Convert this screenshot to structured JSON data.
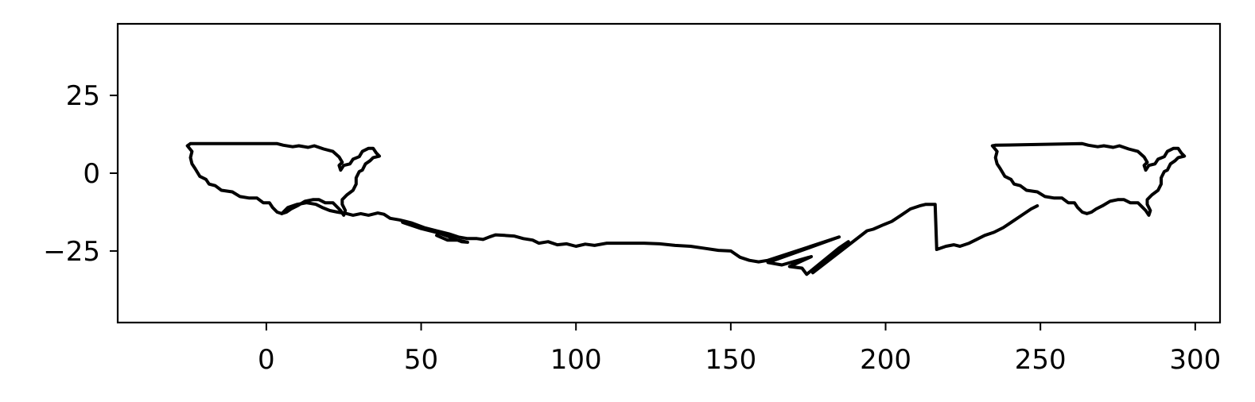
{
  "chart_data": {
    "type": "line",
    "title": "",
    "xlabel": "",
    "ylabel": "",
    "xlim": [
      -48,
      308
    ],
    "ylim": [
      -48,
      48
    ],
    "grid": false,
    "legend": "none",
    "x_ticks": [
      {
        "value": 0,
        "label": "0"
      },
      {
        "value": 50,
        "label": "50"
      },
      {
        "value": 100,
        "label": "100"
      },
      {
        "value": 150,
        "label": "150"
      },
      {
        "value": 200,
        "label": "200"
      },
      {
        "value": 250,
        "label": "250"
      },
      {
        "value": 300,
        "label": "300"
      }
    ],
    "y_ticks": [
      {
        "value": 25,
        "label": "25"
      },
      {
        "value": 0,
        "label": "0"
      },
      {
        "value": -25,
        "label": "−25"
      }
    ],
    "colors": {
      "line": "#000000",
      "frame": "#000000",
      "background": "#ffffff"
    },
    "series": [
      {
        "points": [
          [
            -24.5,
            9.5
          ],
          [
            3.5,
            9.5
          ],
          [
            5.5,
            9.0
          ],
          [
            8.5,
            8.5
          ],
          [
            10.5,
            8.8
          ],
          [
            13.5,
            8.3
          ],
          [
            15.5,
            8.8
          ],
          [
            18.5,
            7.8
          ],
          [
            21.5,
            7.0
          ],
          [
            23.5,
            5.2
          ],
          [
            24.5,
            3.5
          ],
          [
            23.5,
            2.5
          ],
          [
            24.0,
            1.0
          ],
          [
            25.0,
            2.5
          ],
          [
            27.0,
            3.0
          ],
          [
            28.0,
            4.5
          ],
          [
            30.0,
            5.3
          ],
          [
            31.0,
            7.0
          ],
          [
            33.0,
            8.0
          ],
          [
            34.5,
            8.0
          ],
          [
            35.5,
            6.5
          ],
          [
            36.5,
            5.5
          ],
          [
            34.5,
            5.0
          ],
          [
            33.5,
            4.0
          ],
          [
            32.0,
            3.0
          ],
          [
            31.0,
            1.0
          ],
          [
            30.0,
            0.5
          ],
          [
            29.0,
            -1.5
          ],
          [
            29.0,
            -3.5
          ],
          [
            28.0,
            -5.5
          ],
          [
            26.0,
            -7.0
          ],
          [
            24.5,
            -8.5
          ],
          [
            24.5,
            -10.0
          ],
          [
            25.5,
            -12.0
          ],
          [
            25.0,
            -13.5
          ],
          [
            24.0,
            -12.0
          ],
          [
            22.5,
            -10.5
          ],
          [
            21.5,
            -9.5
          ],
          [
            19.0,
            -9.5
          ],
          [
            17.0,
            -8.5
          ],
          [
            15.0,
            -8.5
          ],
          [
            12.5,
            -9.0
          ],
          [
            10.0,
            -10.5
          ],
          [
            8.0,
            -11.5
          ],
          [
            6.5,
            -12.5
          ],
          [
            5.0,
            -13.0
          ],
          [
            3.5,
            -12.5
          ],
          [
            2.0,
            -11.0
          ],
          [
            1.0,
            -9.5
          ],
          [
            -1.0,
            -9.5
          ],
          [
            -3.0,
            -8.0
          ],
          [
            -5.5,
            -8.0
          ],
          [
            -8.5,
            -7.5
          ],
          [
            -11.0,
            -6.0
          ],
          [
            -14.5,
            -5.5
          ],
          [
            -16.5,
            -4.0
          ],
          [
            -18.5,
            -3.5
          ],
          [
            -19.5,
            -2.0
          ],
          [
            -21.5,
            -1.0
          ],
          [
            -23.0,
            1.5
          ],
          [
            -24.0,
            3.0
          ],
          [
            -24.5,
            5.0
          ],
          [
            -24.0,
            7.0
          ],
          [
            -25.5,
            8.8
          ],
          [
            -24.5,
            9.5
          ]
        ]
      },
      {
        "points": [
          [
            5.0,
            -13.0
          ],
          [
            7.0,
            -11.0
          ],
          [
            10.0,
            -10.0
          ],
          [
            13.0,
            -9.5
          ],
          [
            16.0,
            -10.0
          ],
          [
            18.0,
            -11.0
          ],
          [
            20.5,
            -12.0
          ],
          [
            23.0,
            -12.5
          ],
          [
            26.0,
            -13.0
          ],
          [
            28.0,
            -13.5
          ],
          [
            30.5,
            -13.0
          ],
          [
            33.0,
            -13.5
          ],
          [
            36.0,
            -12.8
          ],
          [
            38.0,
            -13.2
          ],
          [
            40.0,
            -14.5
          ],
          [
            43.0,
            -15.0
          ],
          [
            47.0,
            -16.0
          ],
          [
            51.0,
            -17.5
          ],
          [
            55.0,
            -18.5
          ],
          [
            59.0,
            -19.5
          ],
          [
            62.0,
            -20.5
          ],
          [
            65.0,
            -21.0
          ],
          [
            68.0,
            -21.0
          ],
          [
            70.0,
            -21.3
          ],
          [
            72.0,
            -20.5
          ],
          [
            74.0,
            -19.8
          ],
          [
            77.0,
            -20.0
          ],
          [
            80.0,
            -20.2
          ],
          [
            83.0,
            -21.0
          ],
          [
            86.0,
            -21.5
          ],
          [
            88.0,
            -22.5
          ],
          [
            91.0,
            -22.0
          ],
          [
            94.0,
            -23.0
          ],
          [
            97.0,
            -22.7
          ],
          [
            100.0,
            -23.5
          ],
          [
            103.0,
            -22.8
          ],
          [
            106.0,
            -23.2
          ],
          [
            110.0,
            -22.5
          ],
          [
            114.0,
            -22.5
          ],
          [
            118.0,
            -22.5
          ],
          [
            122.0,
            -22.5
          ],
          [
            127.0,
            -22.7
          ],
          [
            132.0,
            -23.2
          ],
          [
            137.0,
            -23.5
          ],
          [
            142.0,
            -24.2
          ],
          [
            146.0,
            -24.8
          ],
          [
            150.0,
            -25.0
          ],
          [
            153.0,
            -27.0
          ],
          [
            156.0,
            -28.0
          ],
          [
            159.0,
            -28.5
          ],
          [
            162.0,
            -28.0
          ],
          [
            185.0,
            -20.5
          ],
          [
            162.0,
            -28.7
          ],
          [
            166.5,
            -29.5
          ],
          [
            176.0,
            -26.8
          ],
          [
            169.0,
            -30.0
          ],
          [
            173.0,
            -30.5
          ],
          [
            174.5,
            -32.5
          ],
          [
            185.0,
            -24.0
          ],
          [
            188.0,
            -22.0
          ],
          [
            176.5,
            -32.0
          ],
          [
            194.0,
            -18.5
          ],
          [
            196.0,
            -18.0
          ],
          [
            199.5,
            -16.5
          ],
          [
            202.0,
            -15.5
          ],
          [
            205.0,
            -13.5
          ],
          [
            208.0,
            -11.5
          ],
          [
            211.0,
            -10.5
          ],
          [
            213.0,
            -10.0
          ],
          [
            214.5,
            -10.0
          ],
          [
            216.0,
            -10.0
          ],
          [
            216.5,
            -24.5
          ],
          [
            219.5,
            -23.5
          ],
          [
            222.0,
            -23.0
          ],
          [
            224.0,
            -23.5
          ],
          [
            227.0,
            -22.5
          ],
          [
            229.0,
            -21.5
          ],
          [
            232.0,
            -20.0
          ],
          [
            235.0,
            -19.0
          ],
          [
            238.0,
            -17.5
          ],
          [
            241.0,
            -15.5
          ],
          [
            244.0,
            -13.5
          ],
          [
            247.0,
            -11.5
          ],
          [
            249.0,
            -10.5
          ]
        ]
      },
      {
        "points": [
          [
            44.0,
            -15.8
          ],
          [
            50.0,
            -17.8
          ],
          [
            56.0,
            -19.3
          ],
          [
            60.0,
            -20.8
          ],
          [
            63.0,
            -22.0
          ],
          [
            65.0,
            -22.2
          ],
          [
            62.0,
            -21.5
          ],
          [
            58.5,
            -21.5
          ],
          [
            55.0,
            -20.0
          ]
        ]
      },
      {
        "points": [
          [
            235.5,
            9.0
          ],
          [
            263.5,
            9.5
          ],
          [
            265.5,
            9.0
          ],
          [
            268.5,
            8.5
          ],
          [
            270.5,
            8.8
          ],
          [
            273.5,
            8.3
          ],
          [
            275.5,
            8.8
          ],
          [
            278.5,
            7.8
          ],
          [
            281.5,
            7.0
          ],
          [
            283.5,
            5.2
          ],
          [
            284.5,
            3.5
          ],
          [
            283.5,
            2.5
          ],
          [
            284.0,
            1.0
          ],
          [
            285.0,
            2.5
          ],
          [
            287.0,
            3.0
          ],
          [
            288.0,
            4.5
          ],
          [
            290.0,
            5.3
          ],
          [
            291.0,
            7.0
          ],
          [
            293.0,
            8.0
          ],
          [
            294.5,
            8.0
          ],
          [
            295.5,
            6.5
          ],
          [
            296.5,
            5.5
          ],
          [
            294.5,
            5.0
          ],
          [
            293.5,
            4.0
          ],
          [
            292.0,
            3.0
          ],
          [
            291.0,
            1.0
          ],
          [
            290.0,
            0.5
          ],
          [
            289.0,
            -1.5
          ],
          [
            289.0,
            -3.5
          ],
          [
            288.0,
            -5.5
          ],
          [
            286.0,
            -7.0
          ],
          [
            284.5,
            -8.5
          ],
          [
            284.5,
            -10.0
          ],
          [
            285.5,
            -12.0
          ],
          [
            285.0,
            -13.5
          ],
          [
            284.0,
            -12.0
          ],
          [
            282.5,
            -10.5
          ],
          [
            281.5,
            -9.5
          ],
          [
            279.0,
            -9.5
          ],
          [
            277.0,
            -8.5
          ],
          [
            275.0,
            -8.5
          ],
          [
            272.5,
            -9.0
          ],
          [
            270.0,
            -10.5
          ],
          [
            268.0,
            -11.5
          ],
          [
            266.5,
            -12.5
          ],
          [
            265.0,
            -13.0
          ],
          [
            263.5,
            -12.5
          ],
          [
            262.0,
            -11.0
          ],
          [
            261.0,
            -9.5
          ],
          [
            259.0,
            -9.5
          ],
          [
            257.0,
            -8.0
          ],
          [
            254.5,
            -8.0
          ],
          [
            251.5,
            -7.5
          ],
          [
            249.0,
            -6.0
          ],
          [
            245.5,
            -5.5
          ],
          [
            243.5,
            -4.0
          ],
          [
            241.5,
            -3.5
          ],
          [
            240.5,
            -2.0
          ],
          [
            238.5,
            -1.0
          ],
          [
            237.0,
            1.5
          ],
          [
            236.0,
            3.0
          ],
          [
            235.5,
            5.0
          ],
          [
            236.0,
            7.0
          ],
          [
            234.5,
            8.8
          ],
          [
            235.5,
            9.0
          ]
        ]
      }
    ]
  }
}
